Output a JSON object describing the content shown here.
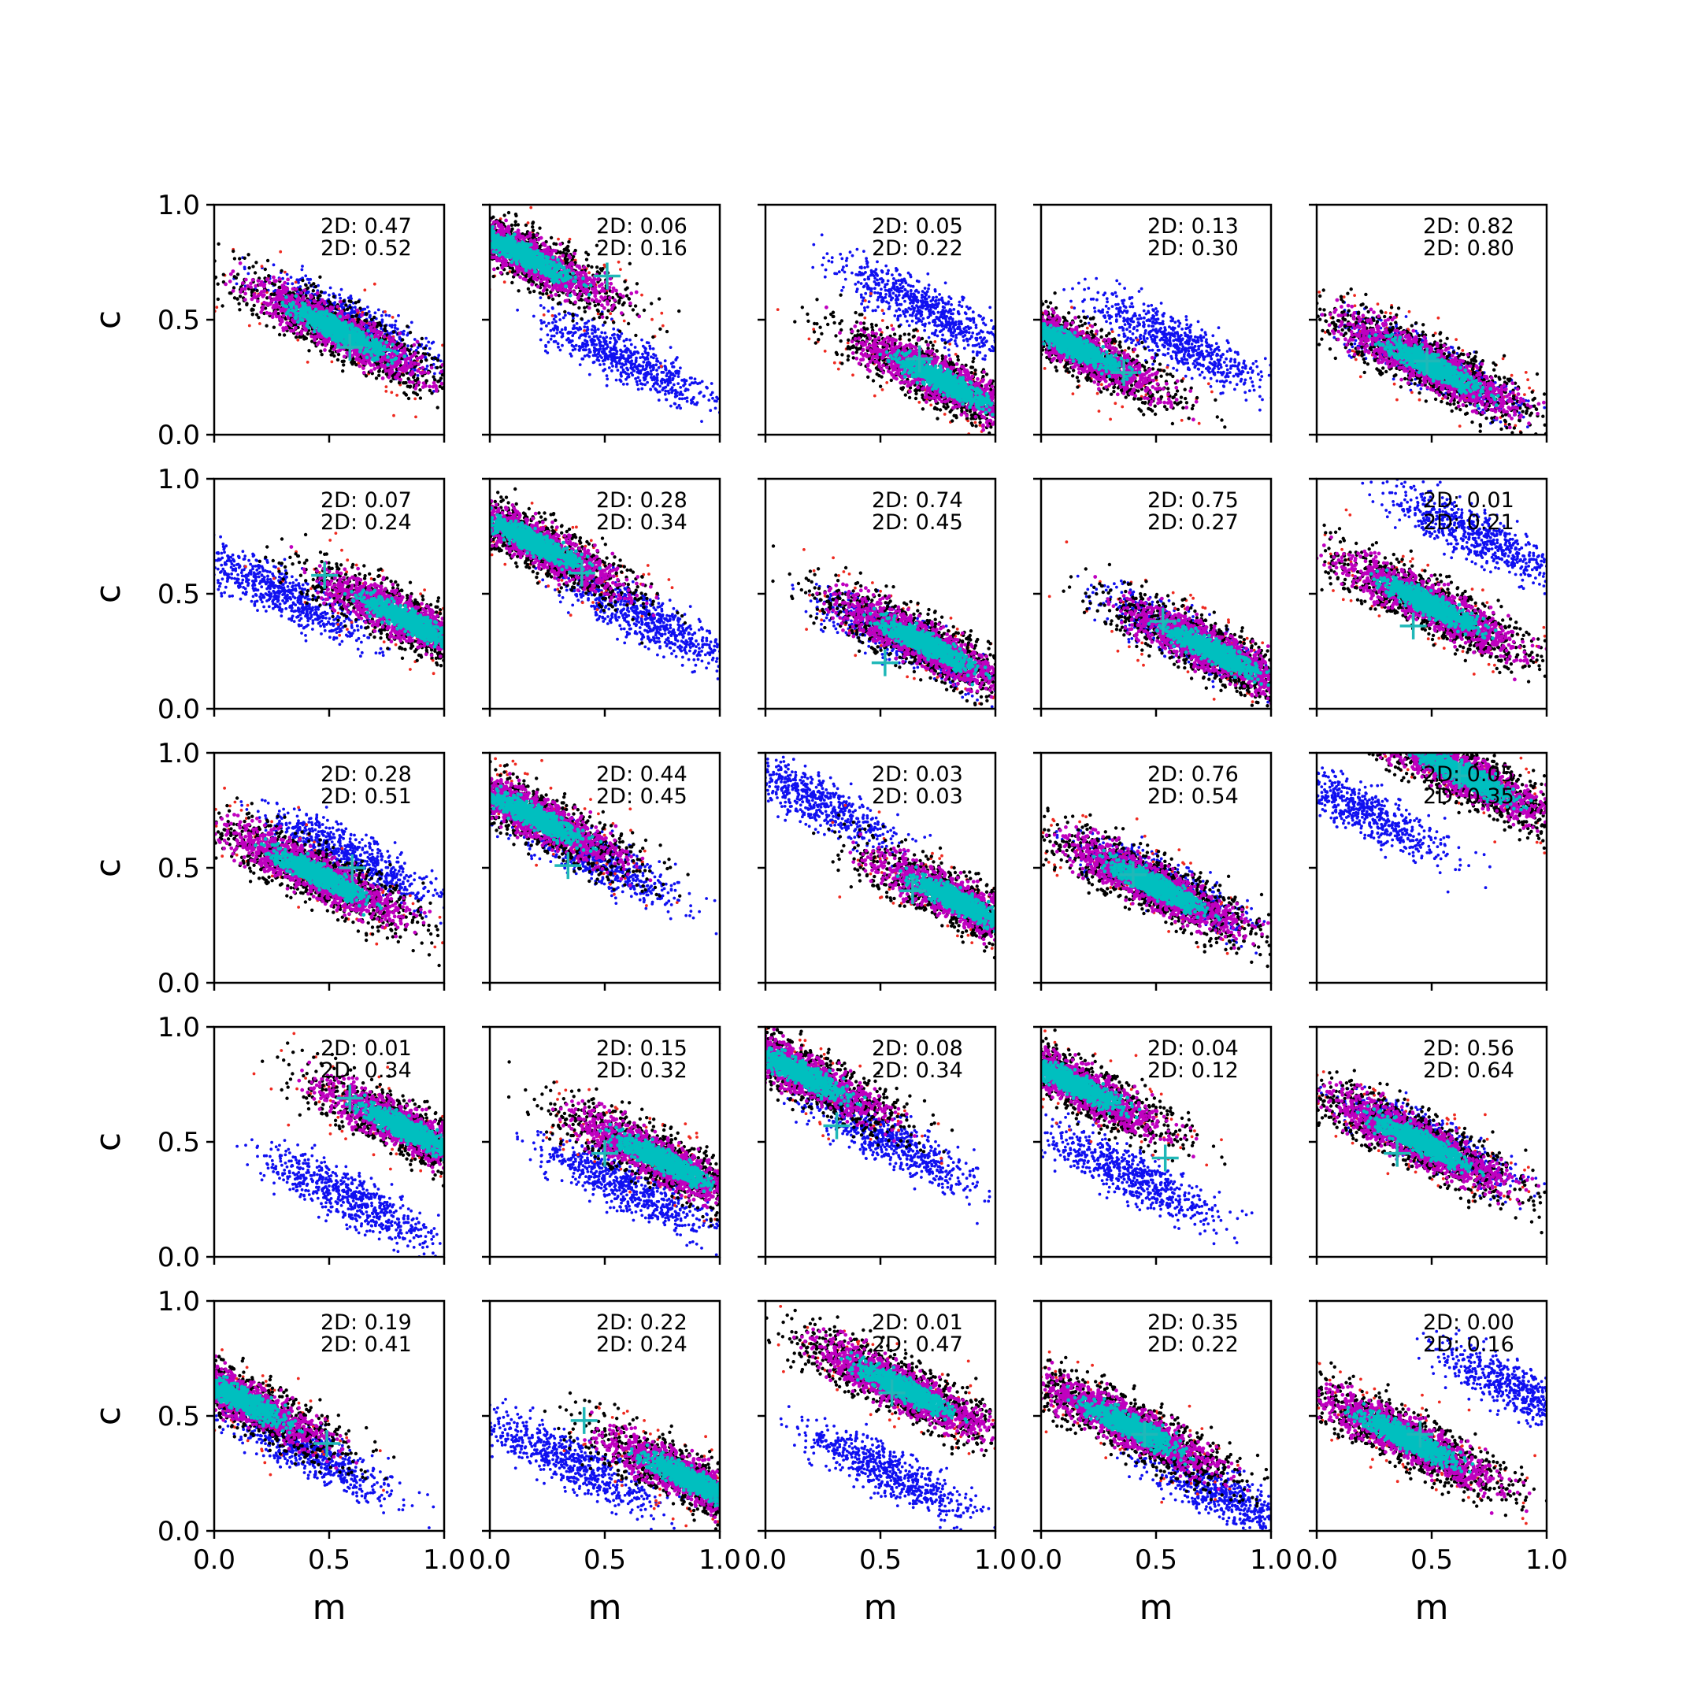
{
  "chart_data": {
    "type": "scatter",
    "grid": false,
    "rows": 5,
    "cols": 5,
    "xlabel": "m",
    "ylabel": "c",
    "xlim": [
      0,
      1
    ],
    "ylim": [
      0,
      1
    ],
    "xticks": [
      "0.0",
      "0.5",
      "1.0"
    ],
    "yticks": [
      "0.0",
      "0.5",
      "1.0"
    ],
    "colors": {
      "blue": "#1010f0",
      "red": "#ee2a20",
      "black": "#000000",
      "magenta": "#bf00bf",
      "cyan": "#00bfbf",
      "marker": "#20b8b8"
    },
    "panels": [
      {
        "labels": [
          "2D: 0.47",
          "2D: 0.52"
        ],
        "main": [
          0.55,
          0.45
        ],
        "blue": [
          0.6,
          0.48
        ],
        "marker": [
          0.59,
          0.38
        ]
      },
      {
        "labels": [
          "2D: 0.06",
          "2D: 0.16"
        ],
        "main": [
          0.15,
          0.78
        ],
        "blue": [
          0.6,
          0.32
        ],
        "marker": [
          0.51,
          0.69
        ]
      },
      {
        "labels": [
          "2D: 0.05",
          "2D: 0.22"
        ],
        "main": [
          0.78,
          0.23
        ],
        "blue": [
          0.7,
          0.55
        ],
        "marker": [
          0.67,
          0.33
        ]
      },
      {
        "labels": [
          "2D: 0.13",
          "2D: 0.30"
        ],
        "main": [
          0.15,
          0.38
        ],
        "blue": [
          0.6,
          0.4
        ],
        "marker": [
          0.36,
          0.27
        ]
      },
      {
        "labels": [
          "2D: 0.82",
          "2D: 0.80"
        ],
        "main": [
          0.5,
          0.3
        ],
        "blue": [
          0.5,
          0.3
        ],
        "marker": [
          0.48,
          0.32
        ]
      },
      {
        "labels": [
          "2D: 0.07",
          "2D: 0.24"
        ],
        "main": [
          0.85,
          0.38
        ],
        "blue": [
          0.3,
          0.5
        ],
        "marker": [
          0.48,
          0.58
        ]
      },
      {
        "labels": [
          "2D: 0.28",
          "2D: 0.34"
        ],
        "main": [
          0.2,
          0.72
        ],
        "blue": [
          0.7,
          0.38
        ],
        "marker": [
          0.4,
          0.59
        ]
      },
      {
        "labels": [
          "2D: 0.74",
          "2D: 0.45"
        ],
        "main": [
          0.7,
          0.28
        ],
        "blue": [
          0.6,
          0.3
        ],
        "marker": [
          0.52,
          0.2
        ]
      },
      {
        "labels": [
          "2D: 0.75",
          "2D: 0.27"
        ],
        "main": [
          0.75,
          0.25
        ],
        "blue": [
          0.65,
          0.3
        ],
        "marker": [
          0.53,
          0.38
        ]
      },
      {
        "labels": [
          "2D: 0.01",
          "2D: 0.21"
        ],
        "main": [
          0.5,
          0.45
        ],
        "blue": [
          0.7,
          0.75
        ],
        "marker": [
          0.42,
          0.36
        ]
      },
      {
        "labels": [
          "2D: 0.28",
          "2D: 0.51"
        ],
        "main": [
          0.45,
          0.47
        ],
        "blue": [
          0.6,
          0.55
        ],
        "marker": [
          0.6,
          0.5
        ]
      },
      {
        "labels": [
          "2D: 0.44",
          "2D: 0.45"
        ],
        "main": [
          0.2,
          0.72
        ],
        "blue": [
          0.45,
          0.55
        ],
        "marker": [
          0.34,
          0.51
        ]
      },
      {
        "labels": [
          "2D: 0.03",
          "2D: 0.03"
        ],
        "main": [
          0.85,
          0.35
        ],
        "blue": [
          0.2,
          0.8
        ],
        "marker": [
          0.64,
          0.4
        ]
      },
      {
        "labels": [
          "2D: 0.76",
          "2D: 0.54"
        ],
        "main": [
          0.5,
          0.42
        ],
        "blue": [
          0.55,
          0.42
        ],
        "marker": [
          0.4,
          0.47
        ]
      },
      {
        "labels": [
          "2D: 0.05",
          "2D: 0.35"
        ],
        "main": [
          0.65,
          0.9
        ],
        "blue": [
          0.2,
          0.75
        ],
        "marker": [
          0.62,
          0.9
        ]
      },
      {
        "labels": [
          "2D: 0.01",
          "2D: 0.34"
        ],
        "main": [
          0.85,
          0.55
        ],
        "blue": [
          0.6,
          0.25
        ],
        "marker": [
          0.59,
          0.69
        ]
      },
      {
        "labels": [
          "2D: 0.15",
          "2D: 0.32"
        ],
        "main": [
          0.75,
          0.42
        ],
        "blue": [
          0.6,
          0.3
        ],
        "marker": [
          0.5,
          0.45
        ]
      },
      {
        "labels": [
          "2D: 0.08",
          "2D: 0.34"
        ],
        "main": [
          0.15,
          0.8
        ],
        "blue": [
          0.55,
          0.5
        ],
        "marker": [
          0.31,
          0.57
        ]
      },
      {
        "labels": [
          "2D: 0.04",
          "2D: 0.12"
        ],
        "main": [
          0.15,
          0.75
        ],
        "blue": [
          0.4,
          0.35
        ],
        "marker": [
          0.54,
          0.43
        ]
      },
      {
        "labels": [
          "2D: 0.56",
          "2D: 0.64"
        ],
        "main": [
          0.45,
          0.5
        ],
        "blue": [
          0.5,
          0.5
        ],
        "marker": [
          0.35,
          0.45
        ]
      },
      {
        "labels": [
          "2D: 0.19",
          "2D: 0.41"
        ],
        "main": [
          0.12,
          0.57
        ],
        "blue": [
          0.4,
          0.35
        ],
        "marker": [
          0.49,
          0.38
        ]
      },
      {
        "labels": [
          "2D: 0.22",
          "2D: 0.24"
        ],
        "main": [
          0.88,
          0.22
        ],
        "blue": [
          0.35,
          0.3
        ],
        "marker": [
          0.41,
          0.48
        ]
      },
      {
        "labels": [
          "2D: 0.01",
          "2D: 0.47"
        ],
        "main": [
          0.6,
          0.62
        ],
        "blue": [
          0.55,
          0.25
        ],
        "marker": [
          0.55,
          0.6
        ]
      },
      {
        "labels": [
          "2D: 0.35",
          "2D: 0.22"
        ],
        "main": [
          0.4,
          0.45
        ],
        "blue": [
          0.8,
          0.15
        ],
        "marker": [
          0.45,
          0.42
        ]
      },
      {
        "labels": [
          "2D: 0.00",
          "2D: 0.16"
        ],
        "main": [
          0.4,
          0.4
        ],
        "blue": [
          0.9,
          0.6
        ],
        "marker": [
          0.45,
          0.42
        ]
      }
    ]
  }
}
